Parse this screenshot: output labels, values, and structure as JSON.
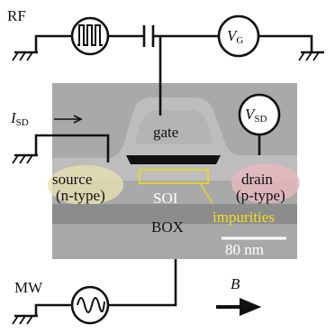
{
  "labels": {
    "rf": "RF",
    "vg": {
      "main": "V",
      "sub": "G"
    },
    "isd": {
      "main": "I",
      "sub": "SD"
    },
    "vsd": {
      "main": "V",
      "sub": "SD"
    },
    "gate": "gate",
    "source": "source",
    "source_type": "(n-type)",
    "drain": "drain",
    "drain_type": "(p-type)",
    "soi": "SOI",
    "box": "BOX",
    "impurities": "impurities",
    "scale": "80 nm",
    "mw": "MW",
    "b": "B"
  }
}
